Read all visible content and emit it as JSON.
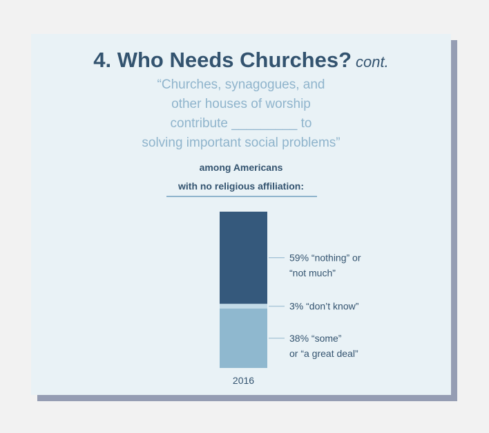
{
  "header": {
    "title": "4. Who Needs Churches?",
    "title_suffix": "cont.",
    "quote_lines": [
      "“Churches, synagogues, and",
      "other houses of worship",
      "contribute _________ to",
      "solving important social problems”"
    ],
    "subtitle_lines": [
      "among Americans",
      "with no religious affiliation:"
    ]
  },
  "colors": {
    "title": "#33536f",
    "quote": "#8fb4cc",
    "nothing": "#35597c",
    "dont_know": "#c3dbe8",
    "some": "#8fb8cf"
  },
  "chart_data": {
    "type": "bar",
    "stacked": true,
    "categories": [
      "2016"
    ],
    "series": [
      {
        "name": "“nothing” or “not much”",
        "values": [
          59
        ]
      },
      {
        "name": "“don’t know”",
        "values": [
          3
        ]
      },
      {
        "name": "“some” or “a great deal”",
        "values": [
          38
        ]
      }
    ],
    "labels": [
      {
        "pct": "59%",
        "lines": [
          "“nothing” or",
          "“not much”"
        ]
      },
      {
        "pct": "3%",
        "lines": [
          "“don’t know”"
        ]
      },
      {
        "pct": "38%",
        "lines": [
          "“some”",
          "or “a great deal”"
        ]
      }
    ],
    "ylim": [
      0,
      100
    ],
    "xlabel": "",
    "ylabel": ""
  }
}
